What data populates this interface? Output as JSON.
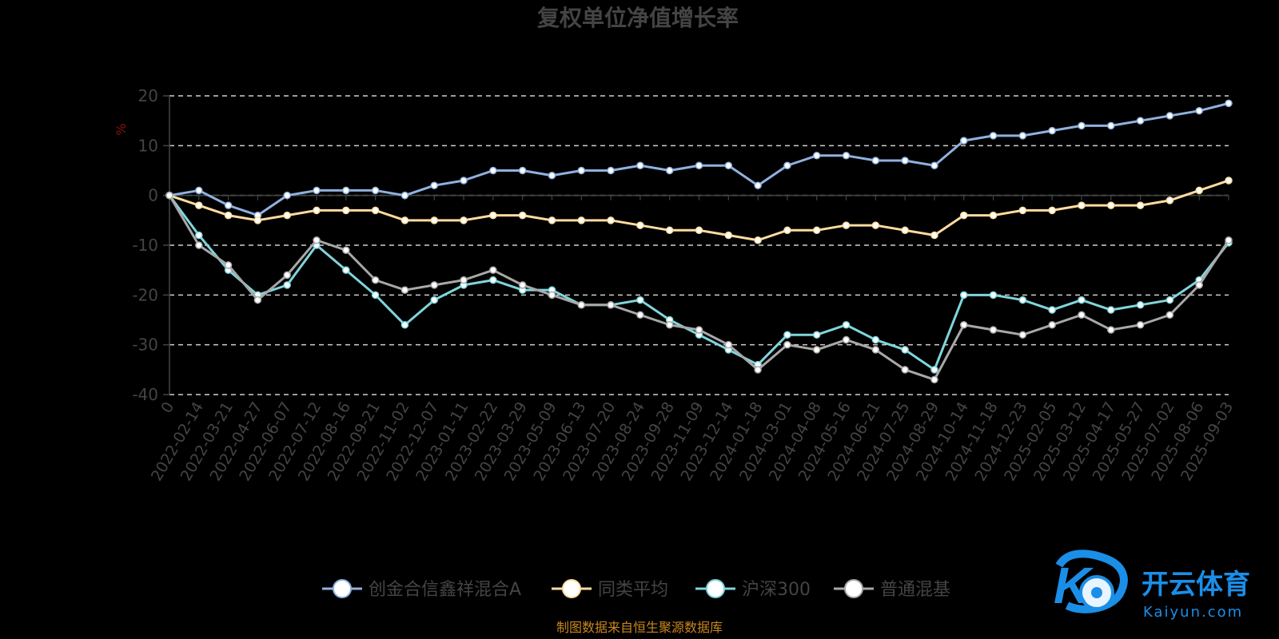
{
  "chart_data": {
    "type": "line",
    "title": "复权单位净值增长率",
    "ylabel": "%",
    "ylim": [
      -40,
      20
    ],
    "yticks": [
      -40,
      -30,
      -20,
      -10,
      0,
      10,
      20
    ],
    "grid": true,
    "legend_position": "bottom",
    "x": [
      "0",
      "2022-02-14",
      "2022-03-21",
      "2022-04-27",
      "2022-06-07",
      "2022-07-12",
      "2022-08-16",
      "2022-09-21",
      "2022-11-02",
      "2022-12-07",
      "2023-01-11",
      "2023-02-22",
      "2023-03-29",
      "2023-05-09",
      "2023-06-13",
      "2023-07-20",
      "2023-08-24",
      "2023-09-28",
      "2023-11-09",
      "2023-12-14",
      "2024-01-18",
      "2024-03-01",
      "2024-04-08",
      "2024-05-16",
      "2024-06-21",
      "2024-07-25",
      "2024-08-29",
      "2024-10-14",
      "2024-11-18",
      "2024-12-23",
      "2025-02-05",
      "2025-03-12",
      "2025-04-17",
      "2025-05-27",
      "2025-07-02",
      "2025-08-06",
      "2025-09-03"
    ],
    "series": [
      {
        "name": "创金合信鑫祥混合A",
        "color": "#8fb1e0",
        "values": [
          0,
          1,
          -2,
          -4,
          0,
          1,
          1,
          1,
          0,
          2,
          3,
          5,
          5,
          4,
          5,
          5,
          6,
          5,
          6,
          6,
          2,
          6,
          8,
          8,
          7,
          7,
          6,
          11,
          12,
          12,
          13,
          14,
          14,
          15,
          16,
          17,
          18.5
        ]
      },
      {
        "name": "同类平均",
        "color": "#ffdc9e",
        "values": [
          0,
          -2,
          -4,
          -5,
          -4,
          -3,
          -3,
          -3,
          -5,
          -5,
          -5,
          -4,
          -4,
          -5,
          -5,
          -5,
          -6,
          -7,
          -7,
          -8,
          -9,
          -7,
          -7,
          -6,
          -6,
          -7,
          -8,
          -4,
          -4,
          -3,
          -3,
          -2,
          -2,
          -2,
          -1,
          1,
          3
        ]
      },
      {
        "name": "沪深300",
        "color": "#7ed6dc",
        "values": [
          0,
          -8,
          -15,
          -20,
          -18,
          -10,
          -15,
          -20,
          -26,
          -21,
          -18,
          -17,
          -19,
          -19,
          -22,
          -22,
          -21,
          -25,
          -28,
          -31,
          -34,
          -28,
          -28,
          -26,
          -29,
          -31,
          -35,
          -20,
          -20,
          -21,
          -23,
          -21,
          -23,
          -22,
          -21,
          -17,
          -9.5
        ]
      },
      {
        "name": "普通混基",
        "color": "#a8a8a8",
        "values": [
          0,
          -10,
          -14,
          -21,
          -16,
          -9,
          -11,
          -17,
          -19,
          -18,
          -17,
          -15,
          -18,
          -20,
          -22,
          -22,
          -24,
          -26,
          -27,
          -30,
          -35,
          -30,
          -31,
          -29,
          -31,
          -35,
          -37,
          -26,
          -27,
          -28,
          -26,
          -24,
          -27,
          -26,
          -24,
          -18,
          -9
        ]
      }
    ]
  },
  "legend": [
    "创金合信鑫祥混合A",
    "同类平均",
    "沪深300",
    "普通混基"
  ],
  "footer": {
    "source": "制图数据来自恒生聚源数据库"
  },
  "brand": {
    "cn": "开云体育",
    "en": "Kaiyun.com",
    "logo_letter": "K"
  }
}
